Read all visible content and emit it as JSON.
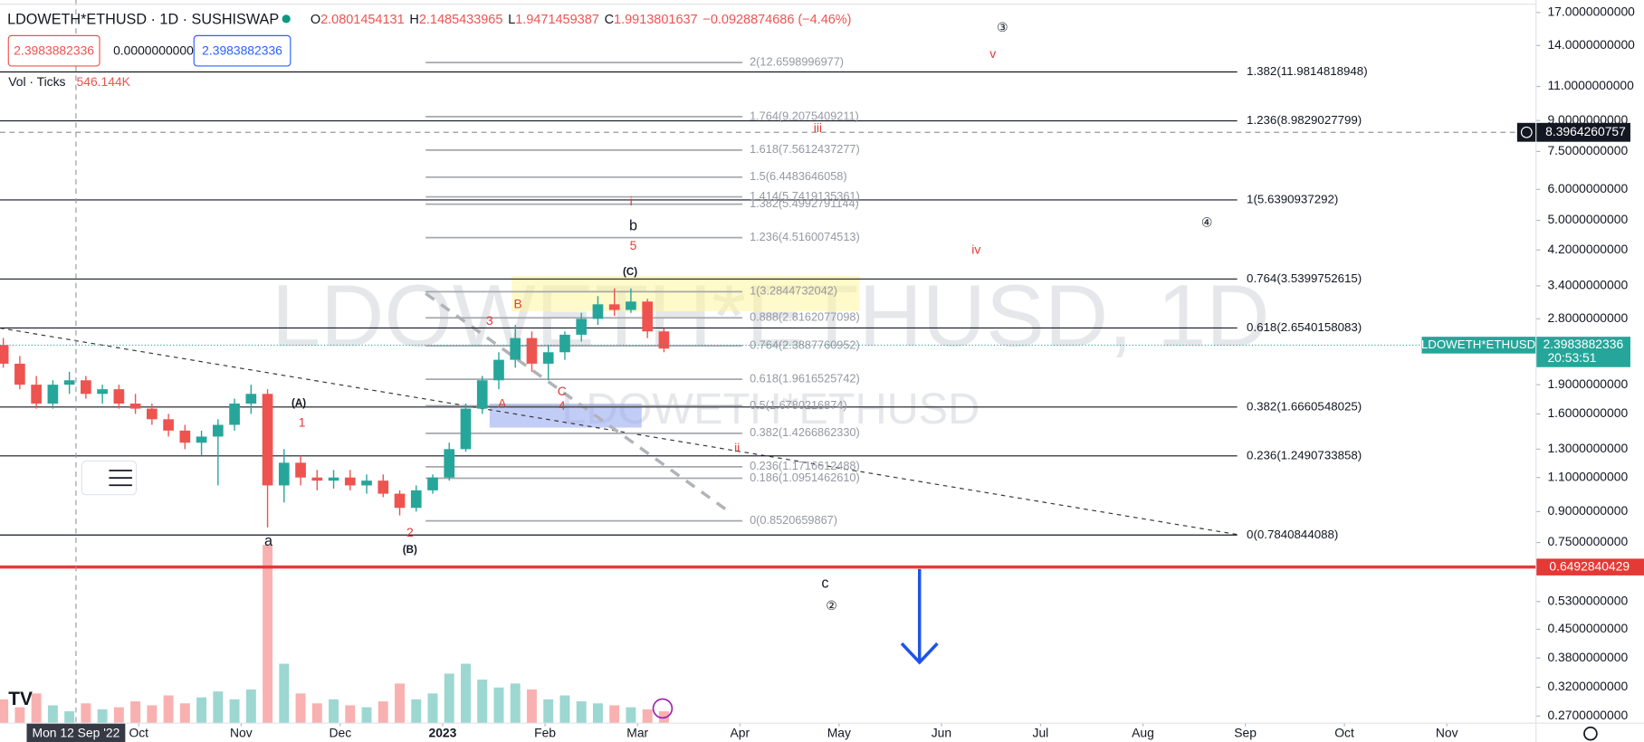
{
  "header": {
    "symbol": "LDOWETH*ETHUSD · 1D · SUSHISWAP",
    "ohlc": [
      {
        "key": "O",
        "value": 2.0801454131
      },
      {
        "key": "H",
        "value": 2.1485433965
      },
      {
        "key": "L",
        "value": 1.9471459387
      },
      {
        "key": "C",
        "value": 1.9913801637
      }
    ],
    "change": "−0.0928874686 (−4.46%)",
    "inputs": [
      "2.3983882336",
      "0.0000000000",
      "2.3983882336"
    ],
    "volume_label": "Vol · Ticks",
    "volume_value": "546.144K"
  },
  "watermark": "LDOWETH*ETHUSD, 1D",
  "watermark_sub": "LDOWETH*ETHUSD",
  "chart_data": {
    "type": "candlestick",
    "symbol": "LDOWETH*ETHUSD",
    "log_scale": true,
    "up_color": "#26a69a",
    "down_color": "#ef5350",
    "x": [
      "2022-08-21",
      "2022-08-26",
      "2022-08-31",
      "2022-09-05",
      "2022-09-10",
      "2022-09-15",
      "2022-09-20",
      "2022-09-25",
      "2022-09-30",
      "2022-10-05",
      "2022-10-10",
      "2022-10-15",
      "2022-10-20",
      "2022-10-25",
      "2022-10-30",
      "2022-11-04",
      "2022-11-09",
      "2022-11-14",
      "2022-11-19",
      "2022-11-24",
      "2022-11-29",
      "2022-12-04",
      "2022-12-09",
      "2022-12-14",
      "2022-12-19",
      "2022-12-24",
      "2022-12-29",
      "2023-01-03",
      "2023-01-08",
      "2023-01-13",
      "2023-01-18",
      "2023-01-23",
      "2023-01-28",
      "2023-02-02",
      "2023-02-07",
      "2023-02-12",
      "2023-02-17",
      "2023-02-22",
      "2023-02-27",
      "2023-03-04",
      "2023-03-09"
    ],
    "open": [
      2.4,
      2.15,
      1.9,
      1.7,
      1.9,
      1.95,
      1.8,
      1.85,
      1.7,
      1.65,
      1.55,
      1.45,
      1.35,
      1.4,
      1.5,
      1.7,
      1.8,
      1.05,
      1.2,
      1.1,
      1.08,
      1.1,
      1.05,
      1.08,
      1.0,
      0.92,
      1.02,
      1.1,
      1.3,
      1.65,
      1.95,
      2.2,
      2.5,
      2.15,
      2.3,
      2.55,
      2.8,
      3.05,
      2.95,
      3.1,
      2.6
    ],
    "high": [
      2.5,
      2.25,
      2.0,
      1.95,
      2.05,
      2.0,
      1.9,
      1.9,
      1.8,
      1.7,
      1.6,
      1.5,
      1.45,
      1.55,
      1.75,
      1.9,
      1.85,
      1.3,
      1.25,
      1.15,
      1.15,
      1.15,
      1.12,
      1.12,
      1.02,
      1.05,
      1.12,
      1.35,
      1.7,
      2.0,
      2.3,
      2.7,
      2.6,
      2.4,
      2.6,
      2.9,
      3.2,
      3.35,
      3.35,
      3.15,
      2.65
    ],
    "low": [
      2.1,
      1.85,
      1.65,
      1.65,
      1.8,
      1.75,
      1.7,
      1.65,
      1.6,
      1.5,
      1.4,
      1.3,
      1.25,
      1.05,
      1.45,
      1.6,
      0.82,
      0.95,
      1.05,
      1.02,
      1.03,
      1.02,
      1.0,
      0.98,
      0.88,
      0.9,
      1.0,
      1.08,
      1.28,
      1.6,
      1.85,
      2.1,
      2.05,
      1.95,
      2.2,
      2.45,
      2.7,
      2.85,
      2.9,
      2.5,
      2.3
    ],
    "close": [
      2.15,
      1.9,
      1.7,
      1.9,
      1.95,
      1.8,
      1.85,
      1.7,
      1.65,
      1.55,
      1.45,
      1.35,
      1.4,
      1.5,
      1.7,
      1.8,
      1.05,
      1.2,
      1.1,
      1.08,
      1.1,
      1.05,
      1.08,
      1.0,
      0.92,
      1.02,
      1.1,
      1.3,
      1.65,
      1.95,
      2.2,
      2.5,
      2.15,
      2.3,
      2.55,
      2.8,
      3.05,
      2.95,
      3.1,
      2.6,
      2.35
    ],
    "volume": [
      120,
      80,
      150,
      90,
      60,
      100,
      70,
      80,
      110,
      90,
      140,
      100,
      130,
      160,
      120,
      170,
      900,
      300,
      150,
      100,
      120,
      90,
      80,
      110,
      200,
      120,
      150,
      250,
      300,
      220,
      180,
      200,
      170,
      120,
      140,
      110,
      100,
      90,
      80,
      70,
      60
    ],
    "ylim": [
      0.259,
      18.3
    ],
    "yticks": [
      {
        "value": 17,
        "label": "17.0000000000"
      },
      {
        "value": 14,
        "label": "14.0000000000"
      },
      {
        "value": 11,
        "label": "11.0000000000"
      },
      {
        "value": 9,
        "label": "9.0000000000"
      },
      {
        "value": 7.5,
        "label": "7.5000000000"
      },
      {
        "value": 6,
        "label": "6.0000000000"
      },
      {
        "value": 5,
        "label": "5.0000000000"
      },
      {
        "value": 4.2,
        "label": "4.2000000000"
      },
      {
        "value": 3.4,
        "label": "3.4000000000"
      },
      {
        "value": 2.8,
        "label": "2.8000000000"
      },
      {
        "value": 1.9,
        "label": "1.9000000000"
      },
      {
        "value": 1.6,
        "label": "1.6000000000"
      },
      {
        "value": 1.3,
        "label": "1.3000000000"
      },
      {
        "value": 1.1,
        "label": "1.1000000000"
      },
      {
        "value": 0.9,
        "label": "0.9000000000"
      },
      {
        "value": 0.75,
        "label": "0.7500000000"
      },
      {
        "value": 0.53,
        "label": "0.5300000000"
      },
      {
        "value": 0.45,
        "label": "0.4500000000"
      },
      {
        "value": 0.38,
        "label": "0.3800000000"
      },
      {
        "value": 0.32,
        "label": "0.3200000000"
      },
      {
        "value": 0.27,
        "label": "0.2700000000"
      }
    ],
    "xlim": [
      "2022-08-20",
      "2023-11-28"
    ],
    "xticks": [
      {
        "value": "2022-10-01",
        "label": "Oct"
      },
      {
        "value": "2022-11-01",
        "label": "Nov"
      },
      {
        "value": "2022-12-01",
        "label": "Dec"
      },
      {
        "value": "2023-01-01",
        "label": "2023"
      },
      {
        "value": "2023-02-01",
        "label": "Feb"
      },
      {
        "value": "2023-03-01",
        "label": "Mar"
      },
      {
        "value": "2023-04-01",
        "label": "Apr"
      },
      {
        "value": "2023-05-01",
        "label": "May"
      },
      {
        "value": "2023-06-01",
        "label": "Jun"
      },
      {
        "value": "2023-07-01",
        "label": "Jul"
      },
      {
        "value": "2023-08-01",
        "label": "Aug"
      },
      {
        "value": "2023-09-01",
        "label": "Sep"
      },
      {
        "value": "2023-10-01",
        "label": "Oct"
      },
      {
        "value": "2023-11-01",
        "label": "Nov"
      }
    ],
    "last_price": 2.3983882336,
    "countdown": "20:53:51",
    "alert_level": 0.6492840429,
    "crosshair": {
      "x": "2022-09-12",
      "x_label": "Mon 12 Sep '22",
      "y": 8.3964260757
    },
    "fib_levels": [
      {
        "label": "1.382(11.9814818948)",
        "value": 11.9814818948
      },
      {
        "label": "1.236(8.9829027799)",
        "value": 8.9829027799
      },
      {
        "label": "1(5.6390937292)",
        "value": 5.6390937292
      },
      {
        "label": "0.764(3.5399752615)",
        "value": 3.5399752615
      },
      {
        "label": "0.618(2.6540158083)",
        "value": 2.6540158083
      },
      {
        "label": "0.382(1.6660548025)",
        "value": 1.6660548025
      },
      {
        "label": "0.236(1.2490733858)",
        "value": 1.2490733858
      },
      {
        "label": "0(0.7840844088)",
        "value": 0.7840844088
      }
    ],
    "fib_levels_2": [
      {
        "label": "2(12.6598996977)",
        "value": 12.6598996977
      },
      {
        "label": "1.764(9.2075409211)",
        "value": 9.2075409211
      },
      {
        "label": "1.618(7.5612437277)",
        "value": 7.5612437277
      },
      {
        "label": "1.5(6.4483646058)",
        "value": 6.4483646058
      },
      {
        "label": "1.414(5.7419135361)",
        "value": 5.7419135361
      },
      {
        "label": "1.382(5.4992791144)",
        "value": 5.4992791144
      },
      {
        "label": "1.236(4.5160074513)",
        "value": 4.5160074513
      },
      {
        "label": "1(3.2844732042)",
        "value": 3.2844732042
      },
      {
        "label": "0.888(2.8162077098)",
        "value": 2.8162077098
      },
      {
        "label": "0.764(2.3887760952)",
        "value": 2.3887760952
      },
      {
        "label": "0.618(1.9616525742)",
        "value": 1.9616525742
      },
      {
        "label": "0.5(1.6780216874)",
        "value": 1.6780216874
      },
      {
        "label": "0.382(1.4266862330)",
        "value": 1.426686233
      },
      {
        "label": "0.236(1.1716612488)",
        "value": 1.1716612488
      },
      {
        "label": "0.186(1.0951462610)",
        "value": 1.095146261
      },
      {
        "label": "0(0.8520659867)",
        "value": 0.8520659867
      }
    ],
    "wave_labels": [
      {
        "text": "③",
        "color": "#131722"
      },
      {
        "text": "v",
        "color": "#e53935"
      },
      {
        "text": "iii",
        "color": "#e53935"
      },
      {
        "text": "i",
        "color": "#e53935"
      },
      {
        "text": "b",
        "color": "#131722"
      },
      {
        "text": "5",
        "color": "#e53935"
      },
      {
        "text": "④",
        "color": "#131722"
      },
      {
        "text": "iv",
        "color": "#e53935"
      },
      {
        "text": "(C)",
        "color": "#131722"
      },
      {
        "text": "B",
        "color": "#e53935"
      },
      {
        "text": "3",
        "color": "#e53935"
      },
      {
        "text": "(A)",
        "color": "#131722"
      },
      {
        "text": "1",
        "color": "#e53935"
      },
      {
        "text": "A",
        "color": "#e53935"
      },
      {
        "text": "C",
        "color": "#e53935"
      },
      {
        "text": "4",
        "color": "#e53935"
      },
      {
        "text": "ii",
        "color": "#e53935"
      },
      {
        "text": "a",
        "color": "#131722"
      },
      {
        "text": "2",
        "color": "#e53935"
      },
      {
        "text": "(B)",
        "color": "#131722"
      },
      {
        "text": "c",
        "color": "#131722"
      },
      {
        "text": "②",
        "color": "#131722"
      }
    ]
  }
}
